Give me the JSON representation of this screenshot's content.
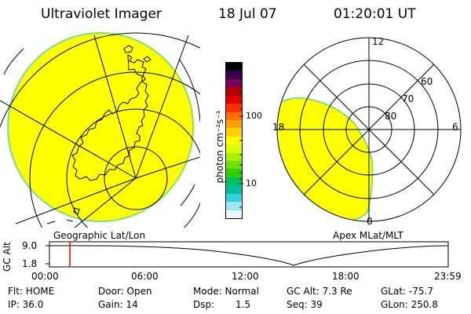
{
  "header": {
    "instrument": "Ultraviolet Imager",
    "date": "18 Jul 07",
    "time": "01:20:01 UT"
  },
  "colorbar": {
    "unit_label": "photon cm⁻²s⁻¹",
    "tick_labels": [
      "100",
      "10"
    ],
    "colors_top_to_bottom": [
      "#000000",
      "#3a0050",
      "#7a0060",
      "#b00000",
      "#e00000",
      "#ff3000",
      "#ff7000",
      "#ffa000",
      "#ffd000",
      "#ffff00",
      "#d8ff00",
      "#a8f000",
      "#70e000",
      "#30d000",
      "#00c060",
      "#00c0a0",
      "#30d0e0",
      "#a0e8f0",
      "#e8f8ff"
    ]
  },
  "geo_map": {
    "label": "Geographic Lat/Lon",
    "fill_color": "#ffff00",
    "edge_color": "#7fdc7f"
  },
  "apex_plot": {
    "label": "Apex MLat/MLT",
    "mlt_labels": {
      "top": "12",
      "left": "18",
      "right": "6",
      "bottom": "0"
    },
    "lat_labels": [
      "60",
      "70",
      "80"
    ],
    "fill_color": "#ffff00",
    "edge_color": "#7fdc7f"
  },
  "alt_timeline": {
    "axis_label": "GC Alt",
    "y_tick_labels": [
      "9.0",
      "1.8"
    ],
    "x_tick_labels": [
      "00:00",
      "06:00",
      "12:00",
      "18:00",
      "23:59"
    ],
    "marker_color": "#e00000"
  },
  "status": {
    "flt": "Flt: HOME",
    "ip": "IP: 36.0",
    "door": "Door: Open",
    "gain": "Gain: 14",
    "mode": "Mode: Normal",
    "dsp_label": "Dsp:",
    "dsp_value": "1.5",
    "gc_alt": "GC Alt: 7.3 Re",
    "seq": "Seq: 39",
    "glat": "GLat: -75.7",
    "glon": "GLon: 250.8"
  }
}
